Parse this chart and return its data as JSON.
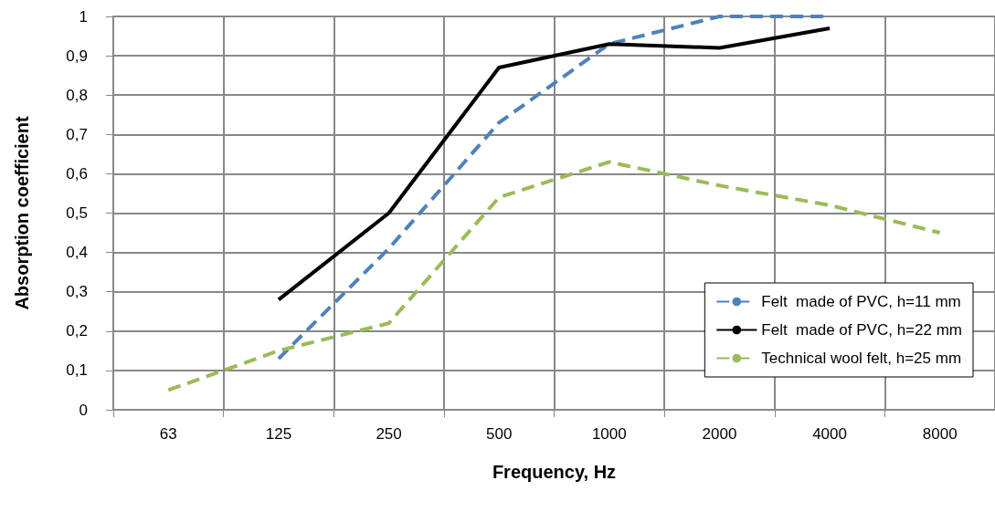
{
  "chart_data": {
    "type": "line",
    "xlabel": "Frequency, Hz",
    "ylabel": "Absorption coefficient",
    "categories": [
      "63",
      "125",
      "250",
      "500",
      "1000",
      "2000",
      "4000",
      "8000"
    ],
    "series": [
      {
        "name": "Felt  made of PVC, h=11 mm",
        "color": "#4f81bd",
        "line_style": "dashed",
        "values": [
          null,
          0.13,
          0.41,
          0.73,
          0.93,
          1.0,
          1.0,
          null
        ]
      },
      {
        "name": "Felt  made of PVC, h=22 mm",
        "color": "#000000",
        "line_style": "solid",
        "values": [
          null,
          0.28,
          0.5,
          0.87,
          0.93,
          0.92,
          0.97,
          null
        ]
      },
      {
        "name": "Technical wool felt, h=25 mm",
        "color": "#9bbb59",
        "line_style": "dashed",
        "values": [
          0.05,
          0.15,
          0.22,
          0.54,
          0.63,
          0.57,
          0.52,
          0.45
        ]
      }
    ],
    "ylim": [
      0,
      1
    ],
    "yticks": [
      0,
      {
        "value": 0.1,
        "label": "0,1"
      },
      {
        "value": 0.2,
        "label": "0,2"
      },
      {
        "value": 0.3,
        "label": "0,3"
      },
      {
        "value": 0.4,
        "label": "0,4"
      },
      {
        "value": 0.5,
        "label": "0,5"
      },
      {
        "value": 0.6,
        "label": "0,6"
      },
      {
        "value": 0.7,
        "label": "0,7"
      },
      {
        "value": 0.8,
        "label": "0,8"
      },
      {
        "value": 0.9,
        "label": "0,9"
      },
      1
    ],
    "grid": true,
    "legend": "bottom right",
    "marker": "none"
  }
}
